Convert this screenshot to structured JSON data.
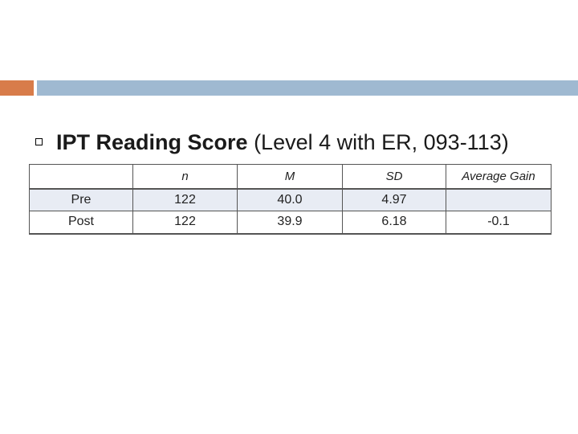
{
  "colors": {
    "accent_orange": "#d87c4a",
    "accent_blue": "#9fb9d1",
    "row_shade": "#e8ecf4"
  },
  "title": {
    "bold_part": "IPT Reading Score",
    "normal_part": " (Level 4 with ER, 093-113)"
  },
  "table": {
    "headers": [
      "",
      "n",
      "M",
      "SD",
      "Average Gain"
    ],
    "rows": [
      {
        "label": "Pre",
        "n": "122",
        "m": "40.0",
        "sd": "4.97",
        "gain": ""
      },
      {
        "label": "Post",
        "n": "122",
        "m": "39.9",
        "sd": "6.18",
        "gain": "-0.1"
      }
    ]
  }
}
